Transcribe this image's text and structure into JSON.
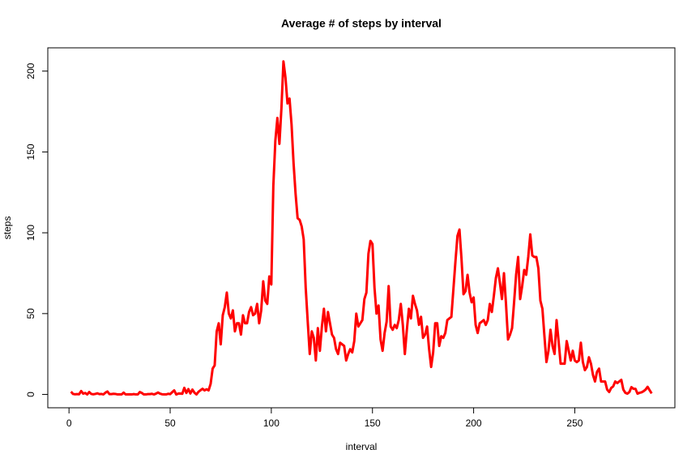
{
  "chart_data": {
    "type": "line",
    "title": "Average # of steps by interval",
    "xlabel": "interval",
    "ylabel": "steps",
    "x": [
      1,
      2,
      3,
      4,
      5,
      6,
      7,
      8,
      9,
      10,
      11,
      12,
      13,
      14,
      15,
      16,
      17,
      18,
      19,
      20,
      21,
      22,
      23,
      24,
      25,
      26,
      27,
      28,
      29,
      30,
      31,
      32,
      33,
      34,
      35,
      36,
      37,
      38,
      39,
      40,
      41,
      42,
      43,
      44,
      45,
      46,
      47,
      48,
      49,
      50,
      51,
      52,
      53,
      54,
      55,
      56,
      57,
      58,
      59,
      60,
      61,
      62,
      63,
      64,
      65,
      66,
      67,
      68,
      69,
      70,
      71,
      72,
      73,
      74,
      75,
      76,
      77,
      78,
      79,
      80,
      81,
      82,
      83,
      84,
      85,
      86,
      87,
      88,
      89,
      90,
      91,
      92,
      93,
      94,
      95,
      96,
      97,
      98,
      99,
      100,
      101,
      102,
      103,
      104,
      105,
      106,
      107,
      108,
      109,
      110,
      111,
      112,
      113,
      114,
      115,
      116,
      117,
      118,
      119,
      120,
      121,
      122,
      123,
      124,
      125,
      126,
      127,
      128,
      129,
      130,
      131,
      132,
      133,
      134,
      135,
      136,
      137,
      138,
      139,
      140,
      141,
      142,
      143,
      144,
      145,
      146,
      147,
      148,
      149,
      150,
      151,
      152,
      153,
      154,
      155,
      156,
      157,
      158,
      159,
      160,
      161,
      162,
      163,
      164,
      165,
      166,
      167,
      168,
      169,
      170,
      171,
      172,
      173,
      174,
      175,
      176,
      177,
      178,
      179,
      180,
      181,
      182,
      183,
      184,
      185,
      186,
      187,
      188,
      189,
      190,
      191,
      192,
      193,
      194,
      195,
      196,
      197,
      198,
      199,
      200,
      201,
      202,
      203,
      204,
      205,
      206,
      207,
      208,
      209,
      210,
      211,
      212,
      213,
      214,
      215,
      216,
      217,
      218,
      219,
      220,
      221,
      222,
      223,
      224,
      225,
      226,
      227,
      228,
      229,
      230,
      231,
      232,
      233,
      234,
      235,
      236,
      237,
      238,
      239,
      240,
      241,
      242,
      243,
      244,
      245,
      246,
      247,
      248,
      249,
      250,
      251,
      252,
      253,
      254,
      255,
      256,
      257,
      258,
      259,
      260,
      261,
      262,
      263,
      264,
      265,
      266,
      267,
      268,
      269,
      270,
      271,
      272,
      273,
      274,
      275,
      276,
      277,
      278,
      279,
      280,
      281,
      282,
      283,
      284,
      285,
      286,
      287,
      288
    ],
    "series": [
      {
        "name": "steps",
        "color": "#ff0000",
        "values": [
          1.7,
          0.3,
          0.1,
          0.2,
          0.1,
          2.1,
          0.5,
          0.9,
          0,
          1.5,
          0.3,
          0.1,
          0.3,
          0.7,
          0.2,
          0.3,
          0,
          1.1,
          1.8,
          0.2,
          0.2,
          0.4,
          0.3,
          0,
          0,
          0,
          1.1,
          0,
          0,
          0.1,
          0,
          0.2,
          0,
          0,
          1.5,
          0.9,
          0,
          0,
          0.2,
          0.2,
          0.4,
          0,
          0.5,
          1.2,
          0.5,
          0.1,
          0,
          0,
          0.4,
          0.2,
          1.4,
          2.5,
          0,
          0.5,
          0.6,
          0.4,
          4.1,
          0.9,
          3.3,
          0.6,
          3,
          1.1,
          0,
          1.6,
          2.6,
          3.5,
          2.5,
          3.2,
          2.5,
          6.5,
          16,
          18,
          39,
          44,
          31,
          49,
          54,
          63,
          50,
          47,
          52,
          39,
          44,
          44,
          37,
          49,
          44,
          44,
          51,
          54,
          49,
          50,
          56,
          44,
          52,
          70,
          58,
          56,
          73,
          68,
          129,
          157,
          171,
          155,
          177,
          206,
          196,
          180,
          183,
          167,
          143,
          124,
          109,
          108,
          104,
          96,
          66,
          45,
          25,
          39,
          35,
          21,
          41,
          27,
          42,
          53,
          39,
          51,
          44,
          37,
          35,
          28,
          25,
          32,
          31,
          30,
          21,
          25,
          28,
          26,
          33,
          50,
          42,
          44,
          46,
          59,
          63,
          87,
          95,
          93,
          66,
          50,
          55,
          34,
          27,
          38,
          45,
          67,
          42,
          40,
          43,
          41,
          46,
          56,
          43,
          25,
          40,
          53,
          47,
          61,
          56,
          52,
          43,
          48,
          35,
          37,
          42,
          28,
          17,
          26,
          44,
          44,
          30,
          36,
          35,
          38,
          46,
          47,
          48,
          65,
          82,
          98,
          102,
          84,
          62,
          64,
          74,
          63,
          57,
          60,
          43,
          38,
          44,
          45,
          46,
          43,
          46,
          56,
          51,
          61,
          72,
          78,
          69,
          59,
          75,
          56,
          34,
          37,
          41,
          57,
          74,
          85,
          59,
          67,
          77,
          74,
          85,
          99,
          86,
          85,
          85,
          78,
          58,
          53,
          36,
          20,
          27,
          40,
          30,
          25,
          46,
          33,
          19,
          19,
          19,
          33,
          27,
          21,
          27,
          21,
          20,
          21,
          32,
          20,
          15,
          17,
          23,
          19,
          12,
          8,
          14,
          16,
          8,
          8,
          8,
          3,
          1.5,
          4,
          5,
          8,
          7,
          8,
          9,
          3,
          1,
          0.5,
          1.5,
          4.5,
          3.5,
          3.5,
          0.5,
          1,
          1.3,
          2,
          3,
          4.7,
          2.6,
          0.6
        ]
      }
    ],
    "xlim": [
      -10.48,
      299.48
    ],
    "xticks": [
      0,
      50,
      100,
      150,
      200,
      250
    ],
    "ylim": [
      -8.25,
      214.4
    ],
    "yticks": [
      0,
      50,
      100,
      150,
      200
    ],
    "grid": false
  }
}
